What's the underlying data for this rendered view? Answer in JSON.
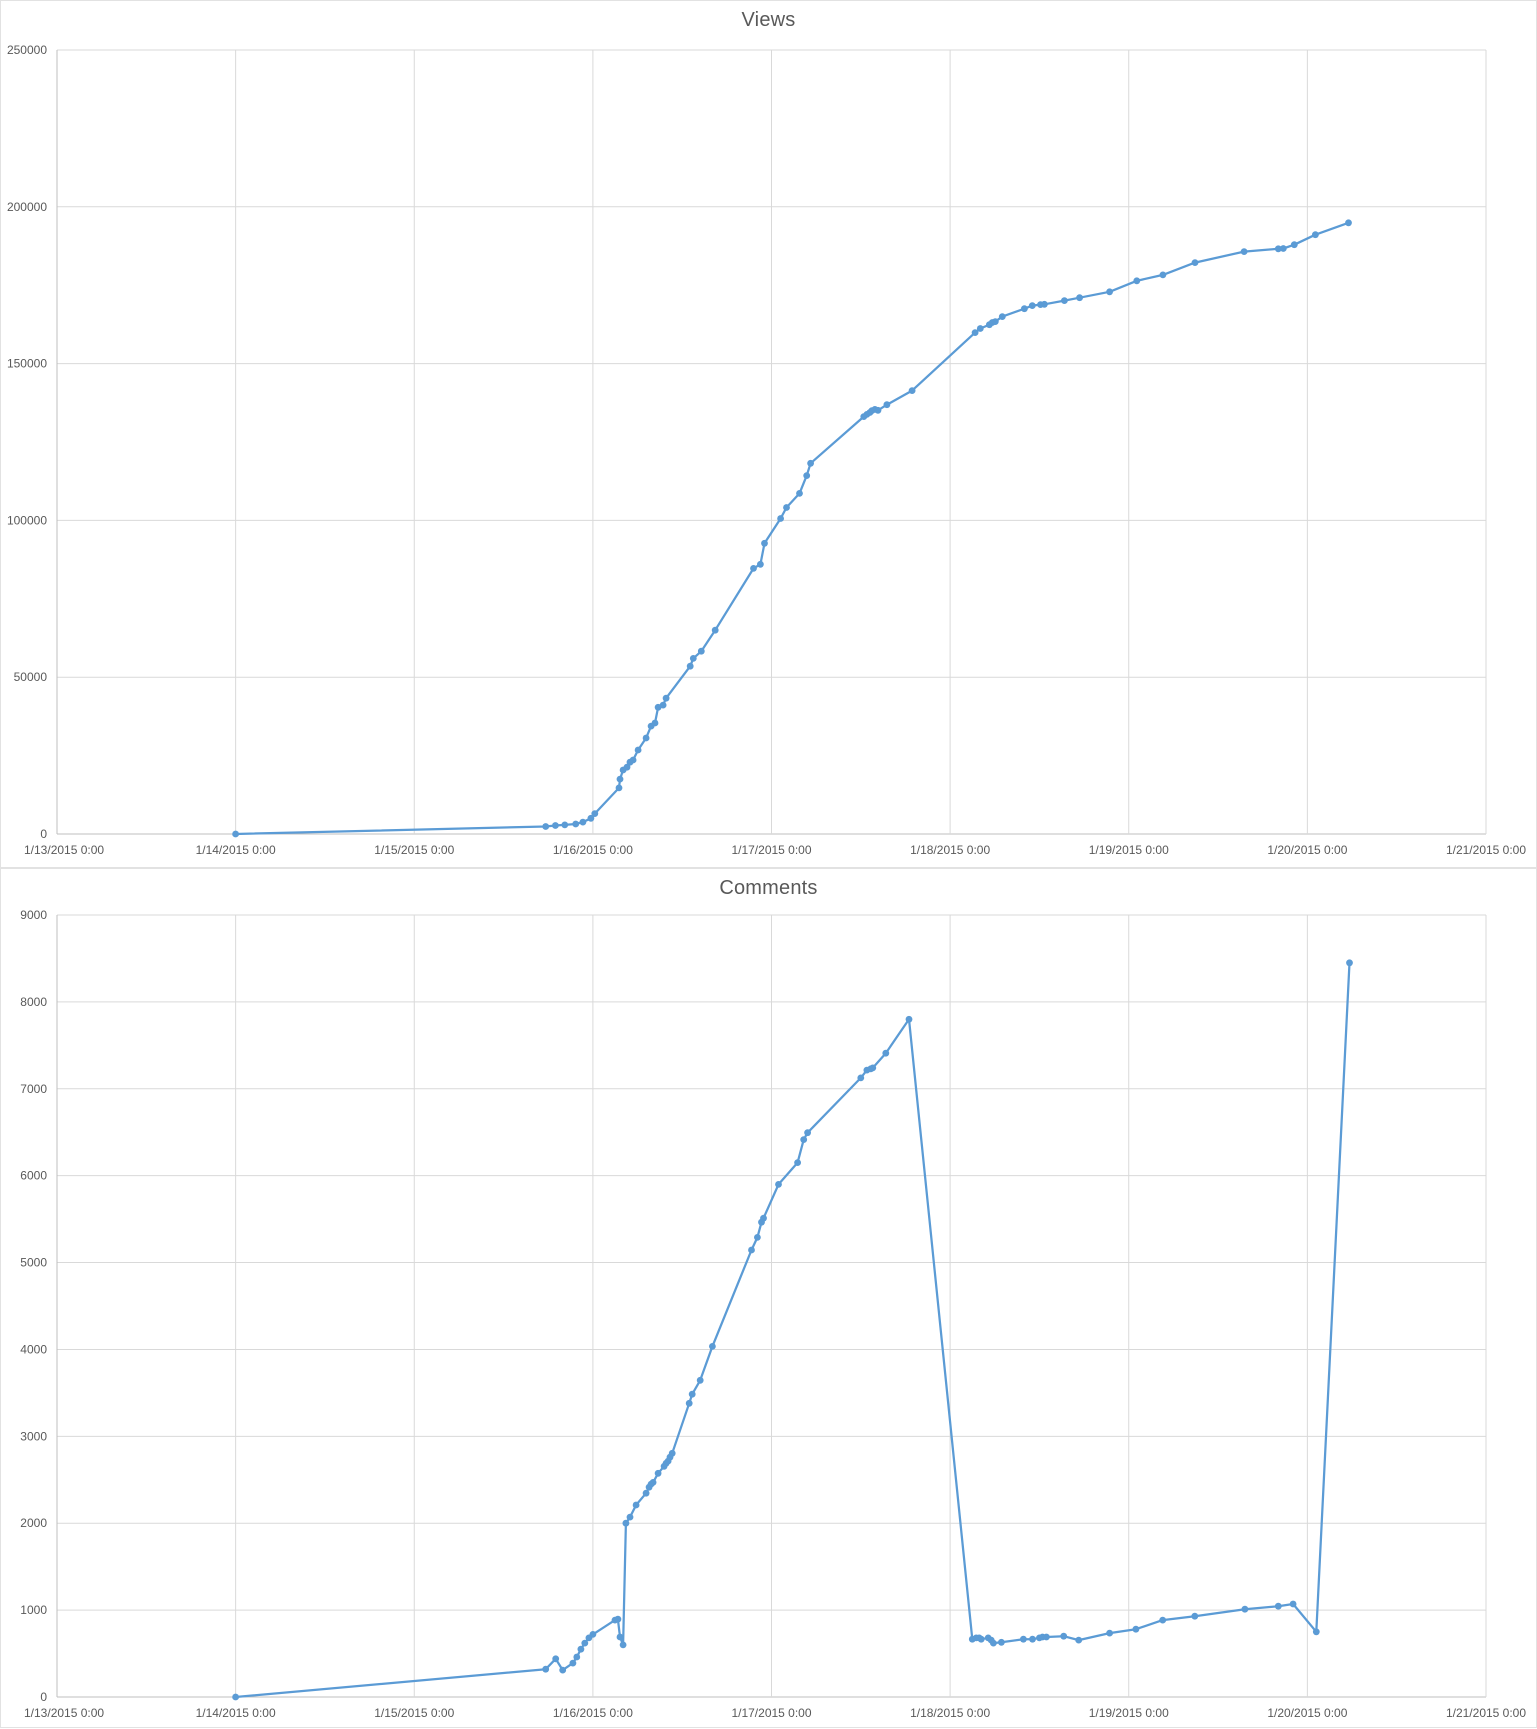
{
  "chart_data": [
    {
      "type": "line",
      "title": "Views",
      "legend": "none",
      "grid": true,
      "line_color": "#5B9BD5",
      "grid_color": "#D9D9D9",
      "axis_color": "#BFBFBF",
      "text_color": "#595959",
      "x_tick_labels": [
        "1/13/2015 0:00",
        "1/14/2015 0:00",
        "1/15/2015 0:00",
        "1/16/2015 0:00",
        "1/17/2015 0:00",
        "1/18/2015 0:00",
        "1/19/2015 0:00",
        "1/20/2015 0:00",
        "1/21/2015 0:00"
      ],
      "x_range_days": [
        0,
        8
      ],
      "x_epoch_label": "days since 1/13/2015 0:00",
      "ylim": [
        0,
        250000
      ],
      "y_tick_labels": [
        "0",
        "50000",
        "100000",
        "150000",
        "200000",
        "250000"
      ],
      "points": [
        [
          1.0,
          0
        ],
        [
          2.736,
          2400
        ],
        [
          2.79,
          2700
        ],
        [
          2.843,
          2900
        ],
        [
          2.904,
          3200
        ],
        [
          2.944,
          3800
        ],
        [
          2.989,
          5000
        ],
        [
          3.011,
          6500
        ],
        [
          3.146,
          14700
        ],
        [
          3.152,
          17500
        ],
        [
          3.169,
          20400
        ],
        [
          3.191,
          21300
        ],
        [
          3.208,
          22900
        ],
        [
          3.225,
          23600
        ],
        [
          3.253,
          26800
        ],
        [
          3.298,
          30600
        ],
        [
          3.326,
          34400
        ],
        [
          3.348,
          35400
        ],
        [
          3.365,
          40400
        ],
        [
          3.393,
          41100
        ],
        [
          3.41,
          43300
        ],
        [
          3.545,
          53500
        ],
        [
          3.562,
          56000
        ],
        [
          3.607,
          58300
        ],
        [
          3.685,
          65000
        ],
        [
          3.899,
          84700
        ],
        [
          3.938,
          86000
        ],
        [
          3.961,
          92700
        ],
        [
          4.051,
          100600
        ],
        [
          4.084,
          104100
        ],
        [
          4.157,
          108600
        ],
        [
          4.197,
          114300
        ],
        [
          4.219,
          118200
        ],
        [
          4.517,
          133100
        ],
        [
          4.534,
          133800
        ],
        [
          4.551,
          134400
        ],
        [
          4.562,
          135000
        ],
        [
          4.579,
          135400
        ],
        [
          4.596,
          135100
        ],
        [
          4.646,
          136900
        ],
        [
          4.787,
          141400
        ],
        [
          5.14,
          159900
        ],
        [
          5.169,
          161200
        ],
        [
          5.22,
          162400
        ],
        [
          5.236,
          163100
        ],
        [
          5.253,
          163400
        ],
        [
          5.292,
          165000
        ],
        [
          5.416,
          167500
        ],
        [
          5.46,
          168500
        ],
        [
          5.506,
          168800
        ],
        [
          5.528,
          168900
        ],
        [
          5.64,
          170100
        ],
        [
          5.725,
          171000
        ],
        [
          5.893,
          172900
        ],
        [
          6.045,
          176400
        ],
        [
          6.191,
          178300
        ],
        [
          6.371,
          182200
        ],
        [
          6.646,
          185700
        ],
        [
          6.837,
          186600
        ],
        [
          6.865,
          186700
        ],
        [
          6.927,
          187900
        ],
        [
          7.045,
          191100
        ],
        [
          7.23,
          194900
        ]
      ]
    },
    {
      "type": "line",
      "title": "Comments",
      "legend": "none",
      "grid": true,
      "line_color": "#5B9BD5",
      "grid_color": "#D9D9D9",
      "axis_color": "#BFBFBF",
      "text_color": "#595959",
      "x_tick_labels": [
        "1/13/2015 0:00",
        "1/14/2015 0:00",
        "1/15/2015 0:00",
        "1/16/2015 0:00",
        "1/17/2015 0:00",
        "1/18/2015 0:00",
        "1/19/2015 0:00",
        "1/20/2015 0:00",
        "1/21/2015 0:00"
      ],
      "x_range_days": [
        0,
        8
      ],
      "x_epoch_label": "days since 1/13/2015 0:00",
      "ylim": [
        0,
        9000
      ],
      "y_tick_labels": [
        "0",
        "1000",
        "2000",
        "3000",
        "4000",
        "5000",
        "6000",
        "7000",
        "8000",
        "9000"
      ],
      "points": [
        [
          1.0,
          0
        ],
        [
          2.736,
          320
        ],
        [
          2.792,
          440
        ],
        [
          2.831,
          310
        ],
        [
          2.888,
          390
        ],
        [
          2.91,
          460
        ],
        [
          2.933,
          550
        ],
        [
          2.955,
          620
        ],
        [
          2.978,
          680
        ],
        [
          3.0,
          720
        ],
        [
          3.124,
          885
        ],
        [
          3.14,
          895
        ],
        [
          3.152,
          690
        ],
        [
          3.169,
          600
        ],
        [
          3.185,
          2000
        ],
        [
          3.208,
          2070
        ],
        [
          3.242,
          2210
        ],
        [
          3.298,
          2345
        ],
        [
          3.315,
          2415
        ],
        [
          3.326,
          2450
        ],
        [
          3.337,
          2470
        ],
        [
          3.365,
          2575
        ],
        [
          3.399,
          2655
        ],
        [
          3.41,
          2690
        ],
        [
          3.421,
          2715
        ],
        [
          3.432,
          2760
        ],
        [
          3.444,
          2805
        ],
        [
          3.539,
          3380
        ],
        [
          3.556,
          3485
        ],
        [
          3.601,
          3645
        ],
        [
          3.669,
          4035
        ],
        [
          3.888,
          5145
        ],
        [
          3.921,
          5290
        ],
        [
          3.944,
          5465
        ],
        [
          3.955,
          5510
        ],
        [
          4.039,
          5900
        ],
        [
          4.146,
          6150
        ],
        [
          4.18,
          6415
        ],
        [
          4.202,
          6495
        ],
        [
          4.5,
          7125
        ],
        [
          4.534,
          7215
        ],
        [
          4.556,
          7230
        ],
        [
          4.567,
          7240
        ],
        [
          4.64,
          7410
        ],
        [
          4.77,
          7800
        ],
        [
          5.124,
          665
        ],
        [
          5.146,
          680
        ],
        [
          5.163,
          680
        ],
        [
          5.174,
          665
        ],
        [
          5.213,
          680
        ],
        [
          5.23,
          655
        ],
        [
          5.242,
          620
        ],
        [
          5.287,
          630
        ],
        [
          5.41,
          665
        ],
        [
          5.461,
          665
        ],
        [
          5.5,
          680
        ],
        [
          5.517,
          690
        ],
        [
          5.539,
          690
        ],
        [
          5.636,
          700
        ],
        [
          5.72,
          655
        ],
        [
          5.893,
          735
        ],
        [
          6.04,
          780
        ],
        [
          6.19,
          885
        ],
        [
          6.37,
          930
        ],
        [
          6.65,
          1010
        ],
        [
          6.837,
          1045
        ],
        [
          6.92,
          1070
        ],
        [
          7.05,
          750
        ],
        [
          7.236,
          8450
        ]
      ]
    }
  ]
}
